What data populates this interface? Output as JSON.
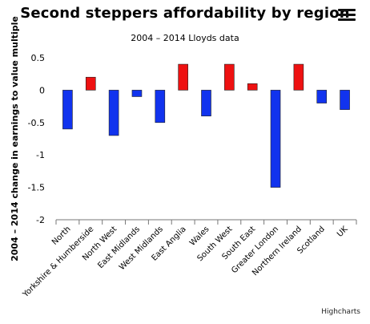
{
  "chart_data": {
    "type": "bar",
    "title": "Second steppers affordability by region",
    "subtitle": "2004 – 2014 Lloyds data",
    "ylabel": "2004 – 2014 change in earnings to value multiple",
    "xlabel": "",
    "ylim": [
      -2,
      0.5
    ],
    "yticks": [
      "0.5",
      "0",
      "-0.5",
      "-1",
      "-1.5",
      "-2"
    ],
    "categories": [
      "North",
      "Yorkshire & Humberside",
      "North West",
      "East Midlands",
      "West Midlands",
      "East Anglia",
      "Wales",
      "South West",
      "South East",
      "Greater London",
      "Northern Ireland",
      "Scotland",
      "UK"
    ],
    "values": [
      -0.6,
      0.2,
      -0.7,
      -0.1,
      -0.5,
      0.4,
      -0.4,
      0.4,
      0.1,
      -1.5,
      0.4,
      -0.2,
      -0.3
    ],
    "colors": {
      "positive": "#ee1111",
      "negative": "#1133ee"
    },
    "grid": false,
    "legend": "none"
  },
  "credit": "Highcharts"
}
